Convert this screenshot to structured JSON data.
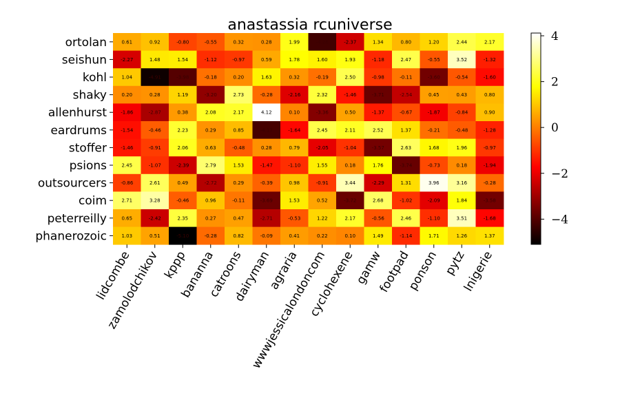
{
  "chart_data": {
    "type": "heatmap",
    "title": "anastassia rcuniverse",
    "xlabel": "",
    "ylabel": "",
    "colormap": "hot",
    "colorbar": {
      "min": -5.1,
      "max": 4.12,
      "ticks": [
        -4,
        -2,
        0,
        2,
        4
      ],
      "tick_labels": [
        "−4",
        "−2",
        "0",
        "2",
        "4"
      ]
    },
    "columns": [
      "lidcombe",
      "zamolodchikov",
      "kppp",
      "bananna",
      "catroons",
      "dairyman",
      "agraria",
      "wwwjessicalondoncom",
      "cyclohexene",
      "gamw",
      "footpad",
      "ponson",
      "pytz",
      "lnigerie"
    ],
    "rows": [
      "ortolan",
      "seishun",
      "kohl",
      "shaky",
      "allenhurst",
      "eardrums",
      "stoffer",
      "psions",
      "outsourcers",
      "coim",
      "peterreilly",
      "phanerozoic"
    ],
    "values": [
      [
        0.61,
        0.92,
        -0.8,
        -0.55,
        0.32,
        0.28,
        1.99,
        -4.26,
        -2.37,
        1.34,
        0.8,
        1.2,
        2.44,
        2.17
      ],
      [
        -2.27,
        1.48,
        1.54,
        -1.12,
        -0.97,
        0.59,
        1.78,
        1.6,
        1.93,
        -1.18,
        2.47,
        -0.55,
        3.52,
        -1.32
      ],
      [
        1.04,
        -4.91,
        -3.98,
        -0.18,
        0.2,
        1.63,
        0.32,
        -0.19,
        2.5,
        -0.98,
        -0.11,
        -3.6,
        -0.54,
        -1.6
      ],
      [
        0.2,
        0.28,
        1.19,
        -3.2,
        2.73,
        -0.28,
        -2.16,
        2.32,
        -1.46,
        -3.71,
        -2.54,
        0.45,
        0.43,
        0.8
      ],
      [
        -1.86,
        -2.87,
        0.38,
        2.08,
        2.17,
        4.12,
        0.1,
        -3.36,
        0.5,
        -1.37,
        -0.67,
        -1.87,
        -0.84,
        0.9
      ],
      [
        -1.54,
        -0.46,
        2.23,
        0.29,
        0.85,
        -4.17,
        -1.64,
        2.45,
        2.11,
        2.52,
        1.37,
        -0.21,
        -0.48,
        -1.28
      ],
      [
        -1.46,
        -0.91,
        2.06,
        0.63,
        -0.48,
        0.28,
        0.79,
        -2.05,
        -1.04,
        -3.57,
        2.63,
        1.68,
        1.96,
        -0.97
      ],
      [
        2.45,
        -1.07,
        -2.39,
        2.79,
        1.53,
        -1.47,
        -1.1,
        1.55,
        0.18,
        1.76,
        -3.74,
        -0.73,
        0.18,
        -1.94
      ],
      [
        -0.86,
        2.61,
        0.49,
        -2.72,
        0.29,
        -0.39,
        0.98,
        -0.91,
        3.44,
        -2.29,
        1.31,
        3.96,
        3.16,
        -0.28
      ],
      [
        2.71,
        3.28,
        -0.46,
        0.96,
        -0.11,
        -3.69,
        1.53,
        0.52,
        -3.72,
        2.68,
        -1.02,
        -2.09,
        1.84,
        -3.58
      ],
      [
        0.65,
        -2.42,
        2.35,
        0.27,
        0.47,
        -2.71,
        -0.53,
        1.22,
        2.17,
        -0.56,
        2.46,
        -1.1,
        3.51,
        -1.68
      ],
      [
        1.03,
        0.51,
        -5.1,
        -0.28,
        0.82,
        -0.09,
        0.41,
        0.22,
        0.1,
        1.49,
        -1.14,
        1.71,
        1.26,
        1.37
      ]
    ]
  }
}
